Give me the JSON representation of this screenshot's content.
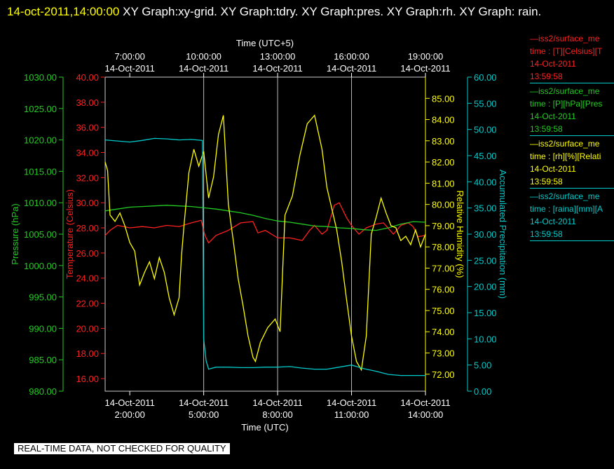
{
  "header": {
    "timestamp": "14-oct-2011,14:00:00",
    "graphs": "XY Graph:xy-grid.  XY Graph:tdry.  XY Graph:pres.  XY Graph:rh.  XY Graph: rain."
  },
  "legend": [
    {
      "name": "—iss2/surface_me",
      "field": "time : [T][Celsius][T",
      "date": "14-Oct-2011",
      "time": "13:59:58",
      "color": "#ff2020"
    },
    {
      "name": "—iss2/surface_me",
      "field": "time : [P][hPa][Pres",
      "date": "14-Oct-2011",
      "time": "13:59:58",
      "color": "#22cc22"
    },
    {
      "name": "—iss2/surface_me",
      "field": "time : [rh][%][Relati",
      "date": "14-Oct-2011",
      "time": "13:59:58",
      "color": "#ffff00"
    },
    {
      "name": "—iss2/surface_me",
      "field": "time : [raina][mm][A",
      "date": "14-Oct-2011",
      "time": "13:59:58",
      "color": "#00cccc"
    }
  ],
  "notice": "REAL-TIME DATA, NOT CHECKED FOR QUALITY",
  "chart_data": {
    "type": "line",
    "top_axis": {
      "label": "Time (UTC+5)",
      "ticks": [
        {
          "time": "7:00:00",
          "date": "14-Oct-2011"
        },
        {
          "time": "10:00:00",
          "date": "14-Oct-2011"
        },
        {
          "time": "13:00:00",
          "date": "14-Oct-2011"
        },
        {
          "time": "16:00:00",
          "date": "14-Oct-2011"
        },
        {
          "time": "19:00:00",
          "date": "14-Oct-2011"
        }
      ]
    },
    "bottom_axis": {
      "label": "Time (UTC)",
      "xlim": [
        1.0,
        14.0
      ],
      "tick_hours": [
        2,
        5,
        8,
        11,
        14
      ],
      "ticks": [
        {
          "date": "14-Oct-2011",
          "time": "2:00:00"
        },
        {
          "date": "14-Oct-2011",
          "time": "5:00:00"
        },
        {
          "date": "14-Oct-2011",
          "time": "8:00:00"
        },
        {
          "date": "14-Oct-2011",
          "time": "11:00:00"
        },
        {
          "date": "14-Oct-2011",
          "time": "14:00:00"
        }
      ]
    },
    "grid_vertical_hours": [
      5,
      8,
      11
    ],
    "axes": [
      {
        "id": "pres",
        "label": "Pressure (hPa)",
        "color": "#22cc22",
        "ylim": [
          980,
          1030
        ],
        "ticks": [
          "980.00",
          "985.00",
          "990.00",
          "995.00",
          "1000.00",
          "1005.00",
          "1010.00",
          "1015.00",
          "1020.00",
          "1025.00",
          "1030.00"
        ]
      },
      {
        "id": "tdry",
        "label": "Temperature (Celsius)",
        "color": "#ff2020",
        "ylim": [
          15,
          40
        ],
        "ticks": [
          "16.00",
          "18.00",
          "20.00",
          "22.00",
          "24.00",
          "26.00",
          "28.00",
          "30.00",
          "32.00",
          "34.00",
          "36.00",
          "38.00",
          "40.00"
        ]
      },
      {
        "id": "rh",
        "label": "Relative Humidity (%)",
        "color": "#ffff00",
        "ylim": [
          71.2,
          86.0
        ],
        "ticks": [
          "72.00",
          "73.00",
          "74.00",
          "75.00",
          "76.00",
          "77.00",
          "78.00",
          "79.00",
          "80.00",
          "81.00",
          "82.00",
          "83.00",
          "84.00",
          "85.00"
        ]
      },
      {
        "id": "rain",
        "label": "Accumulated Precipitation (mm)",
        "color": "#00cccc",
        "ylim": [
          0,
          60
        ],
        "ticks": [
          "0.00",
          "5.00",
          "10.00",
          "15.00",
          "20.00",
          "25.00",
          "30.00",
          "35.00",
          "40.00",
          "45.00",
          "50.00",
          "55.00",
          "60.00"
        ]
      }
    ],
    "series": [
      {
        "axis": "tdry",
        "color": "#ff2020",
        "x": [
          1.0,
          1.2,
          1.5,
          2.0,
          2.5,
          3.0,
          3.5,
          4.0,
          4.5,
          4.9,
          5.05,
          5.2,
          5.5,
          6.0,
          6.5,
          7.0,
          7.2,
          7.5,
          8.0,
          8.5,
          9.0,
          9.3,
          9.5,
          9.8,
          10.0,
          10.3,
          10.5,
          10.8,
          11.0,
          11.3,
          11.6,
          12.0,
          12.3,
          12.7,
          13.0,
          13.3,
          13.5,
          13.7,
          14.0
        ],
        "values": [
          27.4,
          27.8,
          28.2,
          28.0,
          28.1,
          28.0,
          28.2,
          28.1,
          28.4,
          28.6,
          27.4,
          26.8,
          27.4,
          27.8,
          28.4,
          28.5,
          27.6,
          27.8,
          27.2,
          27.2,
          27.0,
          27.8,
          28.2,
          27.5,
          27.8,
          29.8,
          30.0,
          28.8,
          28.2,
          27.5,
          28.0,
          28.3,
          28.4,
          27.5,
          28.2,
          28.4,
          28.1,
          27.3,
          27.4
        ]
      },
      {
        "axis": "pres",
        "color": "#22cc22",
        "x": [
          1.0,
          1.5,
          2.0,
          2.5,
          3.0,
          3.5,
          4.0,
          4.5,
          5.0,
          5.5,
          6.0,
          6.5,
          7.0,
          7.5,
          8.0,
          8.5,
          9.0,
          9.5,
          10.0,
          10.5,
          11.0,
          11.5,
          12.0,
          12.5,
          13.0,
          13.5,
          14.0
        ],
        "values": [
          1008.7,
          1009.0,
          1009.3,
          1009.4,
          1009.5,
          1009.6,
          1009.5,
          1009.4,
          1009.2,
          1009.0,
          1008.7,
          1008.4,
          1008.0,
          1007.5,
          1007.1,
          1006.9,
          1006.6,
          1006.3,
          1006.2,
          1006.0,
          1005.9,
          1005.7,
          1005.6,
          1006.0,
          1006.6,
          1007.0,
          1006.9
        ]
      },
      {
        "axis": "rh",
        "color": "#ffff00",
        "x": [
          1.0,
          1.1,
          1.2,
          1.4,
          1.6,
          1.8,
          2.0,
          2.2,
          2.4,
          2.6,
          2.8,
          3.0,
          3.2,
          3.4,
          3.6,
          3.8,
          4.0,
          4.1,
          4.2,
          4.4,
          4.6,
          4.8,
          5.0,
          5.2,
          5.4,
          5.6,
          5.8,
          6.0,
          6.2,
          6.4,
          6.6,
          6.8,
          7.0,
          7.1,
          7.3,
          7.6,
          7.9,
          8.1,
          8.3,
          8.6,
          8.9,
          9.2,
          9.5,
          9.8,
          10.0,
          10.2,
          10.4,
          10.6,
          10.8,
          11.0,
          11.2,
          11.4,
          11.6,
          11.8,
          12.0,
          12.2,
          12.4,
          12.6,
          12.8,
          13.0,
          13.2,
          13.4,
          13.6,
          13.8,
          14.0
        ],
        "values": [
          82.0,
          81.6,
          79.5,
          79.2,
          79.6,
          79.0,
          78.2,
          77.8,
          76.2,
          76.8,
          77.3,
          76.5,
          77.5,
          76.8,
          75.6,
          74.8,
          75.6,
          77.6,
          79.0,
          81.5,
          82.6,
          81.8,
          82.5,
          80.3,
          81.3,
          83.3,
          84.2,
          80.0,
          78.3,
          76.5,
          75.2,
          73.8,
          72.8,
          72.6,
          73.5,
          74.2,
          74.6,
          74.0,
          79.5,
          80.4,
          82.3,
          83.8,
          84.2,
          82.6,
          80.8,
          79.8,
          78.8,
          77.3,
          75.5,
          73.8,
          72.6,
          72.2,
          73.8,
          78.6,
          79.4,
          80.3,
          79.6,
          79.0,
          78.9,
          78.3,
          78.5,
          78.1,
          78.8,
          78.0,
          78.6
        ]
      },
      {
        "axis": "rain",
        "color": "#00cccc",
        "x": [
          1.0,
          1.5,
          2.0,
          2.5,
          3.0,
          3.5,
          4.0,
          4.5,
          4.95,
          5.0,
          5.1,
          5.2,
          5.5,
          6.0,
          6.5,
          7.0,
          7.5,
          8.0,
          8.5,
          9.0,
          9.5,
          10.0,
          10.5,
          11.0,
          11.5,
          12.0,
          12.5,
          13.0,
          13.5,
          14.0
        ],
        "values": [
          48.0,
          47.8,
          47.6,
          47.9,
          48.3,
          48.2,
          48.0,
          48.1,
          47.9,
          10.0,
          5.8,
          4.2,
          4.6,
          4.6,
          4.5,
          4.5,
          4.6,
          4.6,
          4.7,
          4.4,
          4.2,
          4.2,
          4.6,
          5.0,
          4.3,
          3.8,
          3.2,
          3.0,
          3.0,
          3.0
        ]
      }
    ]
  }
}
